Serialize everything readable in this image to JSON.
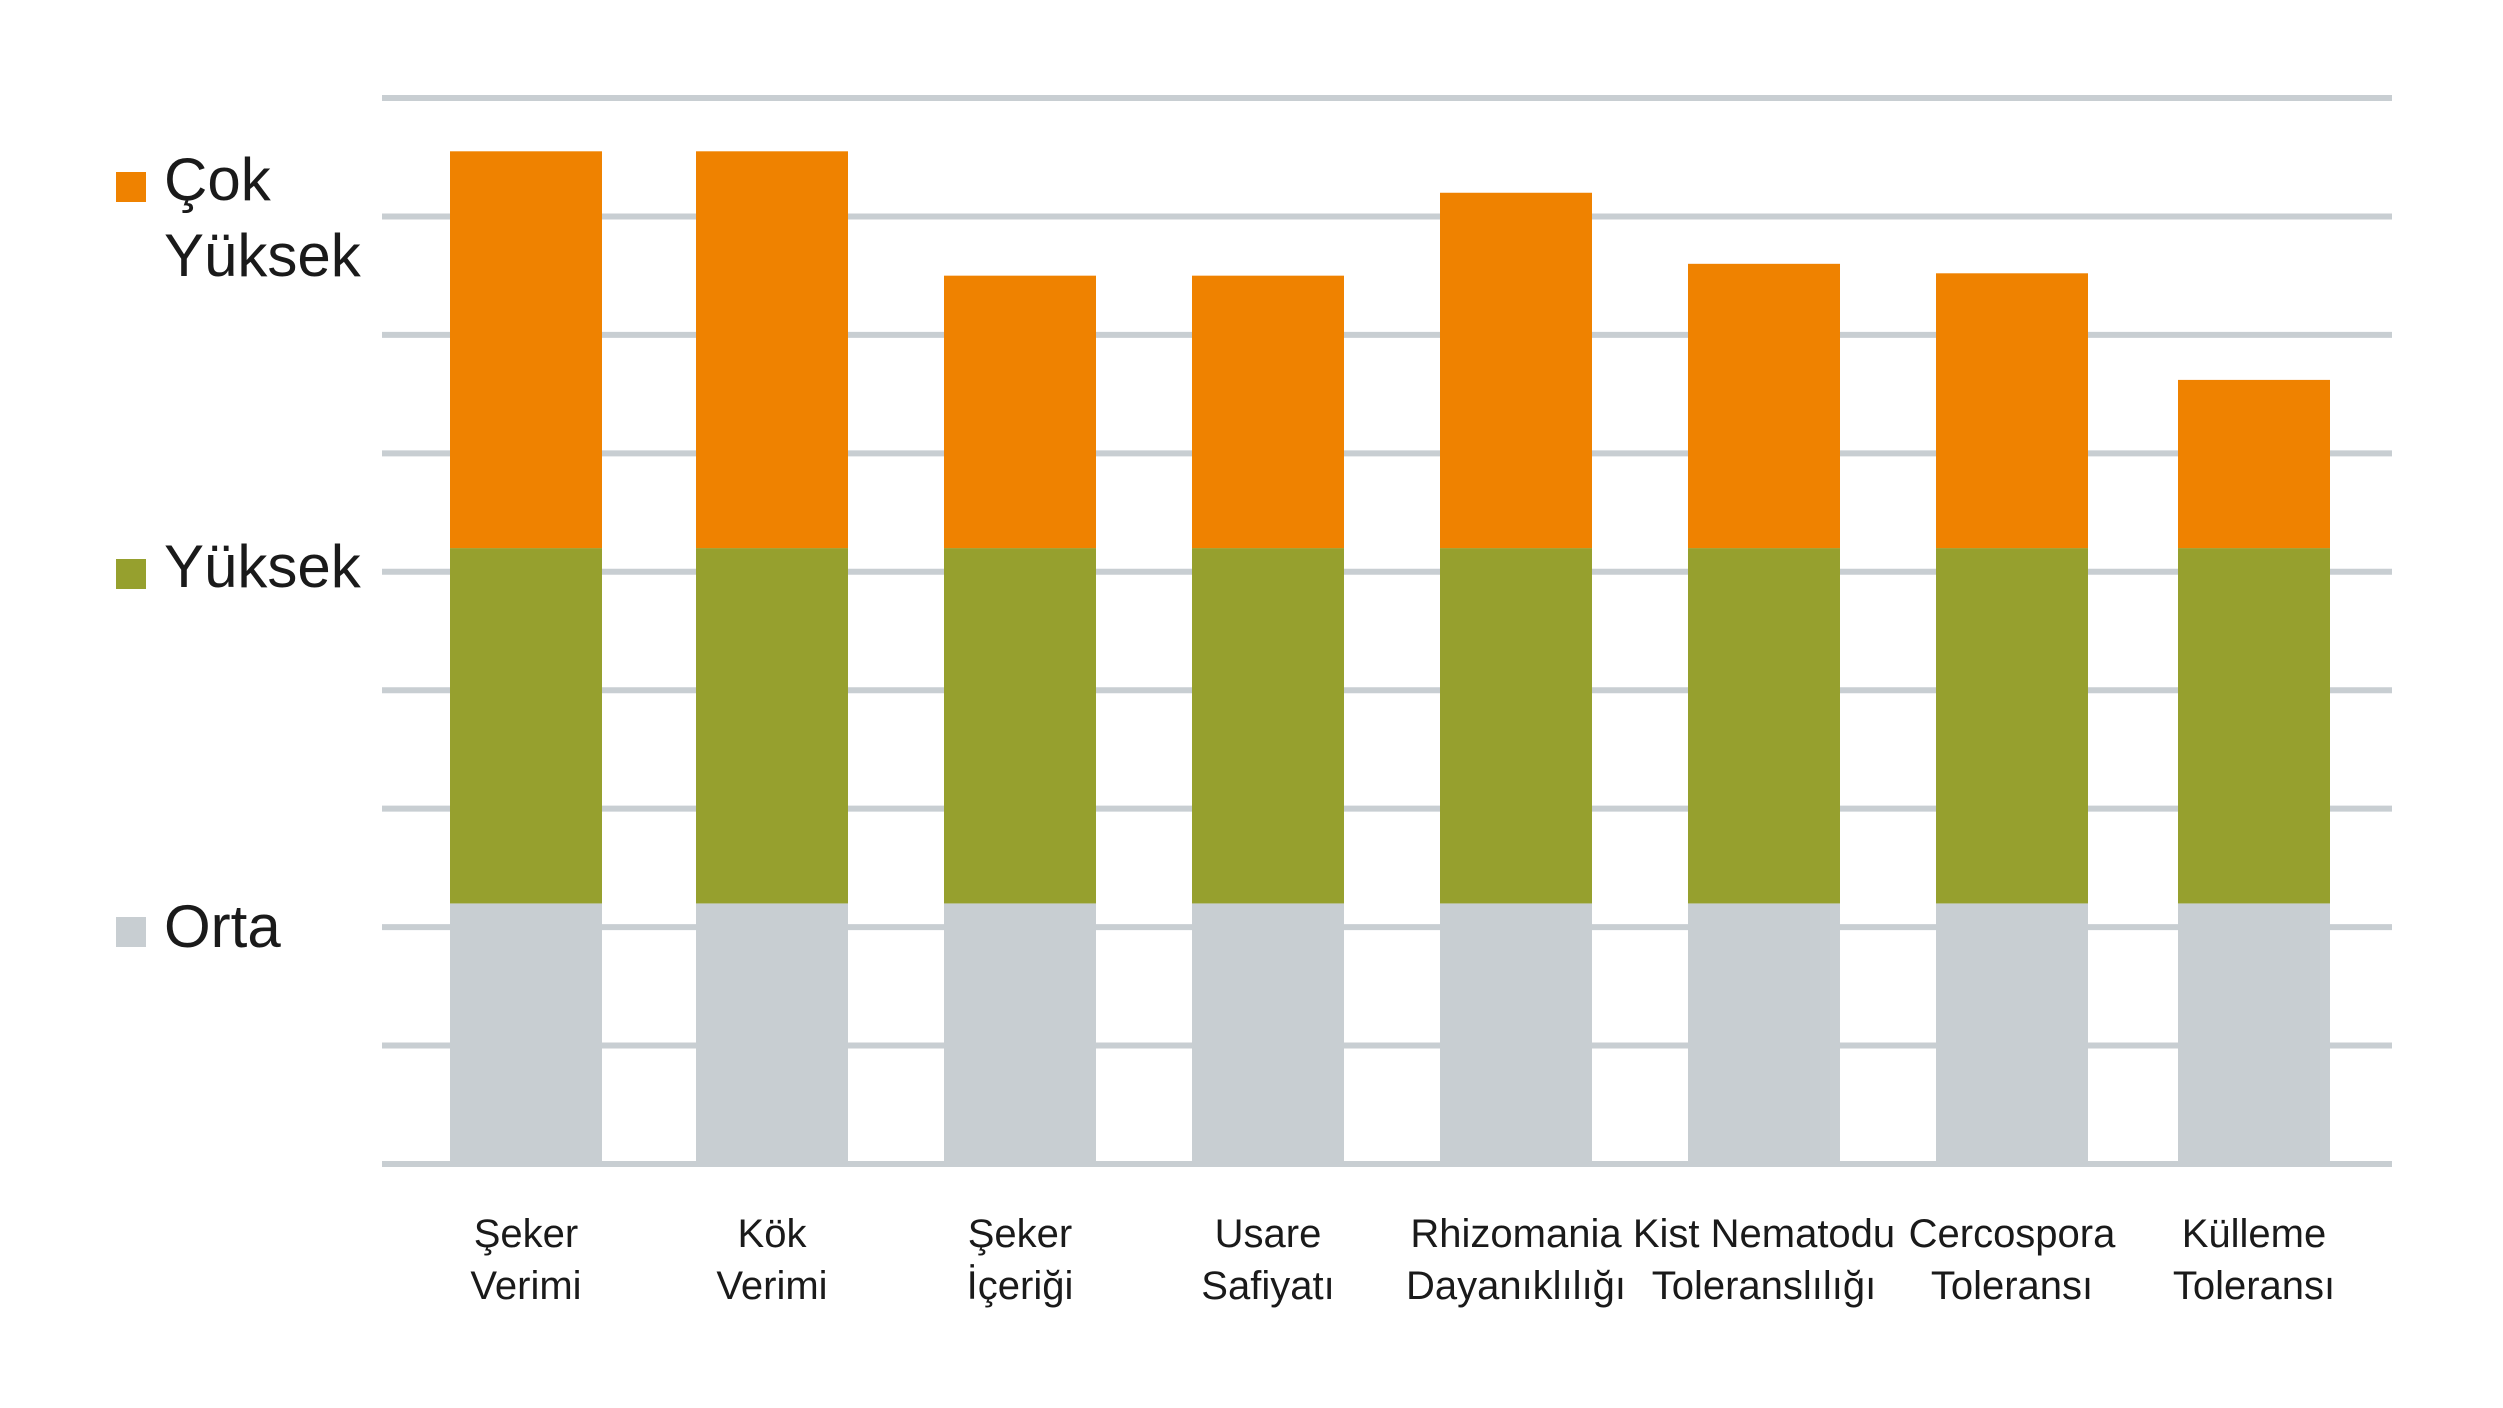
{
  "chart_data": {
    "type": "bar",
    "stacked": true,
    "categories": [
      [
        "Şeker",
        "Verimi"
      ],
      [
        "Kök",
        "Verimi"
      ],
      [
        "Şeker",
        "İçeriği"
      ],
      [
        "Usare",
        "Safiyatı"
      ],
      [
        "Rhizomania",
        "Dayanıklılığı"
      ],
      [
        "Kist Nematodu",
        "Toleranslılığı"
      ],
      [
        "Cercospora",
        "Toleransı"
      ],
      [
        "Külleme",
        "Toleransı"
      ]
    ],
    "series": [
      {
        "name": "Orta",
        "color": "#c8ced2",
        "values": [
          2.2,
          2.2,
          2.2,
          2.2,
          2.2,
          2.2,
          2.2,
          2.2
        ]
      },
      {
        "name": "Yüksek",
        "color": "#96a02e",
        "values": [
          3.0,
          3.0,
          3.0,
          3.0,
          3.0,
          3.0,
          3.0,
          3.0
        ]
      },
      {
        "name": "Çok Yüksek",
        "color": "#ef8200",
        "values": [
          3.35,
          3.35,
          2.3,
          2.3,
          3.0,
          2.4,
          2.32,
          1.42
        ]
      }
    ],
    "ylim": [
      0,
      9
    ],
    "gridlines": [
      0,
      1,
      2,
      3,
      4,
      5,
      6,
      7,
      8,
      9
    ],
    "grid": true,
    "gridline_color": "#c8ced2",
    "legend": {
      "position": "left",
      "items": [
        {
          "lines": [
            "Çok",
            "Yüksek"
          ],
          "color": "#ef8200"
        },
        {
          "lines": [
            "Yüksek"
          ],
          "color": "#96a02e"
        },
        {
          "lines": [
            "Orta"
          ],
          "color": "#c8ced2"
        }
      ]
    }
  }
}
